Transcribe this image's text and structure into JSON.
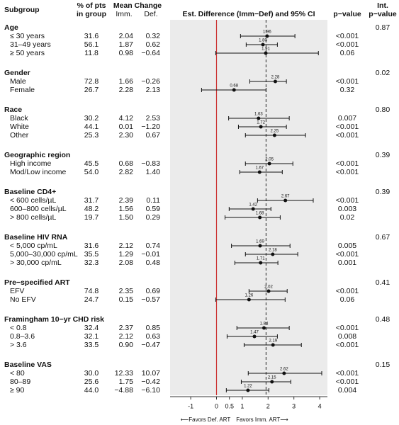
{
  "chart_data": {
    "type": "forest",
    "headers": {
      "subgroup": "Subgroup",
      "pct_1": "% of pts",
      "pct_2": "in group",
      "mean_change": "Mean Change",
      "imm": "Imm.",
      "def": "Def.",
      "plot": "Est. Difference (Imm−Def) and 95% CI",
      "p": "p−value",
      "int_1": "Int.",
      "int_2": "p−value"
    },
    "xlim": [
      -1.8,
      4.3
    ],
    "xticks": [
      -1,
      0,
      0.5,
      1,
      2,
      3,
      4
    ],
    "reference_line": {
      "value": 0,
      "color": "#cc3333"
    },
    "overall_line": {
      "value": 1.92,
      "color": "#222222"
    },
    "marker_color": "#111111",
    "plot_background": "#ebebeb",
    "annotations": {
      "left": "⟵Favors Def. ART",
      "right": "Favors Imm. ART⟶"
    },
    "groups": [
      {
        "name": "Age",
        "int_p": "0.87",
        "rows": [
          {
            "label": "≤ 30 years",
            "pct": "31.6",
            "imm": "2.04",
            "def": "0.32",
            "est": 1.96,
            "est_label": "1.96",
            "ci": [
              0.93,
              3.04
            ],
            "p": "<0.001"
          },
          {
            "label": "31–49 years",
            "pct": "56.1",
            "imm": "1.87",
            "def": "0.62",
            "est": 1.8,
            "est_label": "1.80",
            "ci": [
              1.15,
              2.36
            ],
            "p": "<0.001"
          },
          {
            "label": "≥ 50 years",
            "pct": "11.8",
            "imm": "0.98",
            "def": "−0.64",
            "est": 1.91,
            "est_label": "1.91",
            "ci": [
              -0.03,
              3.95
            ],
            "p": "0.06"
          }
        ]
      },
      {
        "name": "Gender",
        "int_p": "0.02",
        "rows": [
          {
            "label": "Male",
            "pct": "72.8",
            "imm": "1.66",
            "def": "−0.26",
            "est": 2.28,
            "est_label": "2.28",
            "ci": [
              1.29,
              2.71
            ],
            "p": "<0.001"
          },
          {
            "label": "Female",
            "pct": "26.7",
            "imm": "2.28",
            "def": "2.13",
            "est": 0.68,
            "est_label": "0.68",
            "ci": [
              -0.58,
              1.92
            ],
            "p": "0.32"
          }
        ]
      },
      {
        "name": "Race",
        "int_p": "0.80",
        "rows": [
          {
            "label": "Black",
            "pct": "30.2",
            "imm": "4.12",
            "def": "2.53",
            "est": 1.63,
            "est_label": "1.63",
            "ci": [
              0.47,
              2.82
            ],
            "p": "0.007"
          },
          {
            "label": "White",
            "pct": "44.1",
            "imm": "0.01",
            "def": "−1.20",
            "est": 1.72,
            "est_label": "1.72",
            "ci": [
              0.85,
              2.71
            ],
            "p": "<0.001"
          },
          {
            "label": "Other",
            "pct": "25.3",
            "imm": "2.30",
            "def": "0.67",
            "est": 2.25,
            "est_label": "2.25",
            "ci": [
              1.12,
              3.45
            ],
            "p": "<0.001"
          }
        ]
      },
      {
        "name": "Geographic region",
        "int_p": "0.39",
        "rows": [
          {
            "label": "High income",
            "pct": "45.5",
            "imm": "0.68",
            "def": "−0.83",
            "est": 2.05,
            "est_label": "2.05",
            "ci": [
              1.12,
              2.96
            ],
            "p": "<0.001"
          },
          {
            "label": "Mod/Low income",
            "pct": "54.0",
            "imm": "2.82",
            "def": "1.40",
            "est": 1.67,
            "est_label": "1.67",
            "ci": [
              0.9,
              2.55
            ],
            "p": "<0.001"
          }
        ]
      },
      {
        "name": "Baseline CD4+",
        "int_p": "0.39",
        "rows": [
          {
            "label": "< 600 cells/µL",
            "pct": "31.7",
            "imm": "2.39",
            "def": "0.11",
            "est": 2.67,
            "est_label": "2.67",
            "ci": [
              1.59,
              3.75
            ],
            "p": "<0.001"
          },
          {
            "label": "600–800 cells/µL",
            "pct": "48.2",
            "imm": "1.56",
            "def": "0.59",
            "est": 1.42,
            "est_label": "1.42",
            "ci": [
              0.49,
              2.11
            ],
            "p": "0.003"
          },
          {
            "label": "> 800 cells/µL",
            "pct": "19.7",
            "imm": "1.50",
            "def": "0.29",
            "est": 1.68,
            "est_label": "1.68",
            "ci": [
              0.33,
              2.47
            ],
            "p": "0.02"
          }
        ]
      },
      {
        "name": "Baseline HIV RNA",
        "int_p": "0.67",
        "rows": [
          {
            "label": "< 5,000 cp/mL",
            "pct": "31.6",
            "imm": "2.12",
            "def": "0.74",
            "est": 1.69,
            "est_label": "1.69",
            "ci": [
              0.58,
              2.85
            ],
            "p": "0.005"
          },
          {
            "label": "5,000–30,000 cp/mL",
            "pct": "35.5",
            "imm": "1.29",
            "def": "−0.01",
            "est": 2.18,
            "est_label": "2.18",
            "ci": [
              1.12,
              3.15
            ],
            "p": "<0.001"
          },
          {
            "label": "> 30,000 cp/mL",
            "pct": "32.3",
            "imm": "2.08",
            "def": "0.48",
            "est": 1.71,
            "est_label": "1.71",
            "ci": [
              0.71,
              2.38
            ],
            "p": "0.001"
          }
        ]
      },
      {
        "name": "Pre−specified ART",
        "int_p": "0.41",
        "rows": [
          {
            "label": "EFV",
            "pct": "74.8",
            "imm": "2.35",
            "def": "0.69",
            "est": 2.02,
            "est_label": "2.02",
            "ci": [
              1.26,
              2.74
            ],
            "p": "<0.001"
          },
          {
            "label": "No EFV",
            "pct": "24.7",
            "imm": "0.15",
            "def": "−0.57",
            "est": 1.26,
            "est_label": "1.26",
            "ci": [
              -0.03,
              2.66
            ],
            "p": "0.06"
          }
        ]
      },
      {
        "name": "Framingham 10−yr CHD risk",
        "int_p": "0.48",
        "rows": [
          {
            "label": "< 0.8",
            "pct": "32.4",
            "imm": "2.37",
            "def": "0.85",
            "est": 1.84,
            "est_label": "1.84",
            "ci": [
              0.79,
              2.82
            ],
            "p": "<0.001"
          },
          {
            "label": "0.8–3.6",
            "pct": "32.1",
            "imm": "2.12",
            "def": "0.63",
            "est": 1.47,
            "est_label": "1.47",
            "ci": [
              0.41,
              2.36
            ],
            "p": "0.008"
          },
          {
            "label": "> 3.6",
            "pct": "33.5",
            "imm": "0.90",
            "def": "−0.47",
            "est": 2.19,
            "est_label": "2.19",
            "ci": [
              1.07,
              3.29
            ],
            "p": "<0.001"
          }
        ]
      },
      {
        "name": "Baseline VAS",
        "int_p": "0.15",
        "rows": [
          {
            "label": "< 80",
            "pct": "30.0",
            "imm": "12.33",
            "def": "10.07",
            "est": 2.62,
            "est_label": "2.62",
            "ci": [
              1.23,
              4.08
            ],
            "p": "<0.001"
          },
          {
            "label": "80–89",
            "pct": "25.6",
            "imm": "1.75",
            "def": "−0.42",
            "est": 2.15,
            "est_label": "2.15",
            "ci": [
              0.96,
              2.88
            ],
            "p": "<0.001"
          },
          {
            "label": "≥ 90",
            "pct": "44.0",
            "imm": "−4.88",
            "def": "−6.10",
            "est": 1.22,
            "est_label": "1.22",
            "ci": [
              0.38,
              2.03
            ],
            "p": "0.004"
          }
        ]
      }
    ]
  }
}
